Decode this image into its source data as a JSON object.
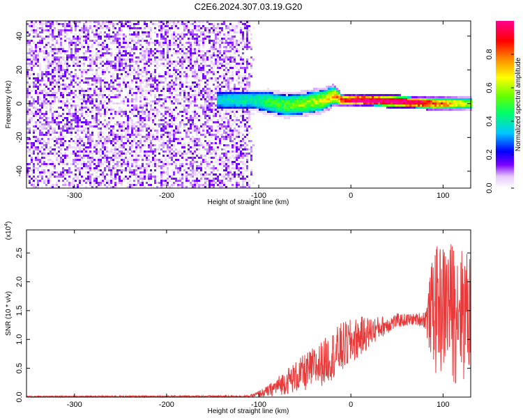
{
  "title": "C2E6.2024.307.03.19.G20",
  "chart_data": [
    {
      "type": "heatmap",
      "xlabel": "Height of straight line (km)",
      "ylabel": "Frequency (Hz)",
      "xlim": [
        -352,
        130
      ],
      "ylim": [
        -50,
        49
      ],
      "xticks": [
        -300,
        -200,
        -100,
        0,
        100
      ],
      "yticks": [
        -40,
        -20,
        0,
        20,
        40
      ],
      "noise_region_x": [
        -352,
        -105
      ],
      "signal_band": [
        {
          "x": -140,
          "center": 2,
          "width": 10,
          "amplitude": 0.25
        },
        {
          "x": -105,
          "center": 2,
          "width": 10,
          "amplitude": 0.3
        },
        {
          "x": -90,
          "center": 1,
          "width": 12,
          "amplitude": 0.35
        },
        {
          "x": -70,
          "center": -1,
          "width": 12,
          "amplitude": 0.4
        },
        {
          "x": -50,
          "center": 0,
          "width": 12,
          "amplitude": 0.45
        },
        {
          "x": -30,
          "center": 2,
          "width": 12,
          "amplitude": 0.5
        },
        {
          "x": -18,
          "center": 5,
          "width": 10,
          "amplitude": 0.6
        },
        {
          "x": -10,
          "center": 2,
          "width": 6,
          "amplitude": 0.8
        },
        {
          "x": 20,
          "center": 2,
          "width": 6,
          "amplitude": 0.95
        },
        {
          "x": 60,
          "center": 1,
          "width": 6,
          "amplitude": 0.95
        },
        {
          "x": 90,
          "center": 0,
          "width": 6,
          "amplitude": 0.75
        },
        {
          "x": 130,
          "center": 0,
          "width": 6,
          "amplitude": 0.5
        }
      ]
    },
    {
      "type": "line",
      "xlabel": "Height of straight line (km)",
      "ylabel": "SNR (10 * v/v)",
      "scale_note": "(x10",
      "scale_exp": "4",
      "scale_close": ")",
      "xlim": [
        -352,
        130
      ],
      "ylim": [
        0,
        2.9
      ],
      "xticks": [
        -300,
        -200,
        -100,
        0,
        100
      ],
      "yticks": [
        0.0,
        0.5,
        1.0,
        1.5,
        2.0,
        2.5
      ],
      "ytick_labels": [
        "0.0",
        "0.5",
        "1.0",
        "1.5",
        "2.0",
        "2.5"
      ],
      "series": [
        {
          "color": "#e83a3a",
          "envelope": [
            {
              "x": -352,
              "low": 0.0,
              "high": 0.02
            },
            {
              "x": -110,
              "low": 0.0,
              "high": 0.03
            },
            {
              "x": -90,
              "low": 0.0,
              "high": 0.2
            },
            {
              "x": -70,
              "low": 0.05,
              "high": 0.5
            },
            {
              "x": -50,
              "low": 0.1,
              "high": 0.75
            },
            {
              "x": -30,
              "low": 0.2,
              "high": 1.0
            },
            {
              "x": -10,
              "low": 0.4,
              "high": 1.3
            },
            {
              "x": 10,
              "low": 0.7,
              "high": 1.4
            },
            {
              "x": 30,
              "low": 1.0,
              "high": 1.4
            },
            {
              "x": 50,
              "low": 1.2,
              "high": 1.45
            },
            {
              "x": 70,
              "low": 1.25,
              "high": 1.45
            },
            {
              "x": 80,
              "low": 1.2,
              "high": 1.5
            },
            {
              "x": 85,
              "low": 0.8,
              "high": 2.0
            },
            {
              "x": 90,
              "low": 0.3,
              "high": 2.6
            },
            {
              "x": 110,
              "low": 0.15,
              "high": 2.7
            },
            {
              "x": 130,
              "low": 0.1,
              "high": 2.5
            }
          ]
        }
      ]
    },
    {
      "type": "colorbar",
      "label": "Normalized spectral amplitude",
      "range": [
        0,
        1
      ],
      "ticks": [
        0.0,
        0.2,
        0.4,
        0.6,
        0.8
      ],
      "tick_labels": [
        "0.0",
        "0.2",
        "0.4",
        "0.6",
        "0.8"
      ]
    }
  ]
}
